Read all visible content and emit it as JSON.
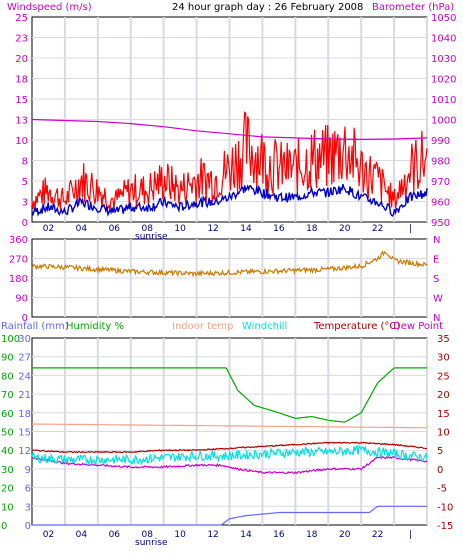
{
  "header": {
    "left_title": "Windspeed (m/s)",
    "center_title": "24 hour graph day : 26 February 2008",
    "right_title": "Barometer (hPa)"
  },
  "labels": {
    "sunrise": "sunrise",
    "rainfall": "Rainfall (mm)",
    "humidity": "Humidity %",
    "indoor": "Indoor temp",
    "windchill": "Windchill",
    "temperature": "Temperature (°C)",
    "dewpoint": "Dew Point"
  },
  "colors": {
    "wind": "#ff0000",
    "wind_avg": "#0000cc",
    "barometer": "#cc00cc",
    "direction": "#cc7a00",
    "rain": "#6666ff",
    "humidity": "#00aa00",
    "indoor": "#f4a28a",
    "windchill": "#00e0e0",
    "temperature": "#b00000",
    "dewpoint": "#cc00cc",
    "axis_magenta": "#cc00cc",
    "grid": "#d9d9e6"
  },
  "chart_data": [
    {
      "type": "line",
      "title": "24 hour graph day : 26 February 2008",
      "ylabel": "Windspeed (m/s)",
      "y2label": "Barometer (hPa)",
      "ylim": [
        0,
        25
      ],
      "y2lim": [
        950,
        1050
      ],
      "yticks": [
        "0",
        "3",
        "5",
        "8",
        "10",
        "13",
        "15",
        "18",
        "20",
        "23",
        "25"
      ],
      "y2ticks": [
        "950",
        "960",
        "970",
        "980",
        "990",
        "1000",
        "1010",
        "1020",
        "1030",
        "1040",
        "1050"
      ],
      "xticks": [
        "02",
        "04",
        "06",
        "08",
        "10",
        "12",
        "14",
        "16",
        "18",
        "20",
        "22",
        "|"
      ],
      "series": [
        {
          "name": "Windspeed (m/s)",
          "x": [
            0,
            1,
            2,
            3,
            4,
            5,
            6,
            7,
            8,
            9,
            10,
            11,
            12,
            13,
            14,
            15,
            16,
            17,
            18,
            19,
            20,
            21,
            22,
            23,
            24
          ],
          "values": [
            2,
            3,
            2,
            4,
            3,
            2,
            3,
            3,
            4,
            3,
            4,
            4,
            5,
            7,
            6,
            5,
            5,
            6,
            6,
            7,
            5,
            4,
            2,
            5,
            6
          ]
        },
        {
          "name": "Barometer (hPa)",
          "x": [
            0,
            2,
            4,
            6,
            8,
            10,
            12,
            14,
            16,
            18,
            20,
            22,
            24
          ],
          "values": [
            1000,
            999.5,
            999,
            998,
            996.5,
            994.5,
            993,
            991.5,
            991,
            990.5,
            990.3,
            990.5,
            991
          ]
        }
      ]
    },
    {
      "type": "line",
      "ylim": [
        0,
        360
      ],
      "yticks": [
        "0",
        "90",
        "180",
        "270",
        "360"
      ],
      "y2ticks": [
        "N",
        "W",
        "S",
        "E",
        "N"
      ],
      "xticks": [
        "02",
        "04",
        "06",
        "08",
        "10",
        "12",
        "14",
        "16",
        "18",
        "20",
        "22",
        "|"
      ],
      "series": [
        {
          "x": [
            0,
            2,
            4,
            6,
            8,
            10,
            12,
            14,
            16,
            18,
            20,
            21,
            21.5,
            22,
            23,
            24
          ],
          "values": [
            235,
            230,
            220,
            210,
            205,
            200,
            205,
            210,
            215,
            220,
            235,
            270,
            305,
            260,
            250,
            240
          ]
        }
      ]
    },
    {
      "type": "line",
      "xticks": [
        "02",
        "04",
        "06",
        "08",
        "10",
        "12",
        "14",
        "16",
        "18",
        "20",
        "22",
        "|"
      ],
      "y_rain_ticks": [
        "0",
        "3",
        "6",
        "9",
        "12",
        "15",
        "18",
        "21",
        "24",
        "27",
        "30"
      ],
      "y_hum_ticks": [
        "0",
        "10",
        "20",
        "30",
        "40",
        "50",
        "60",
        "70",
        "80",
        "90",
        "100"
      ],
      "y_temp_ticks": [
        "-15",
        "-10",
        "-5",
        "0",
        "5",
        "10",
        "15",
        "20",
        "25",
        "30",
        "35"
      ],
      "ylim_temp": [
        -15,
        35
      ],
      "series": [
        {
          "name": "Rainfall (mm)",
          "x": [
            0,
            11.5,
            12,
            13,
            15,
            18,
            20.5,
            21,
            24
          ],
          "values": [
            0,
            0,
            1,
            1.5,
            2,
            2,
            2,
            3,
            3
          ]
        },
        {
          "name": "Humidity %",
          "x": [
            0,
            11.8,
            12.5,
            13.5,
            15,
            16,
            17,
            18,
            19,
            20,
            20.5,
            21,
            22,
            24
          ],
          "values": [
            84,
            84,
            72,
            64,
            60,
            57,
            58,
            56,
            55,
            60,
            68,
            76,
            84,
            84
          ]
        },
        {
          "name": "Indoor temp",
          "x": [
            0,
            24
          ],
          "values": [
            12,
            11
          ]
        },
        {
          "name": "Windchill",
          "x": [
            0,
            2,
            4,
            6,
            8,
            10,
            12,
            14,
            16,
            18,
            20,
            22,
            24
          ],
          "values": [
            3,
            2.5,
            2.5,
            2.5,
            3,
            3.5,
            3.5,
            4,
            4.5,
            4.5,
            5,
            4,
            3
          ]
        },
        {
          "name": "Temperature (°C)",
          "x": [
            0,
            2,
            4,
            6,
            8,
            10,
            12,
            14,
            16,
            18,
            20,
            22,
            24
          ],
          "values": [
            5,
            4.5,
            4.5,
            4.5,
            5,
            5,
            5.5,
            6,
            6.5,
            7,
            7,
            6.5,
            5.5
          ]
        },
        {
          "name": "Dew Point",
          "x": [
            0,
            2,
            4,
            6,
            8,
            10,
            11.5,
            12.5,
            14,
            16,
            18,
            20,
            21,
            22,
            24
          ],
          "values": [
            3,
            1.5,
            1,
            0.5,
            0.5,
            1,
            1,
            0,
            -1,
            -1,
            0,
            0,
            3,
            3,
            2
          ]
        }
      ]
    }
  ]
}
